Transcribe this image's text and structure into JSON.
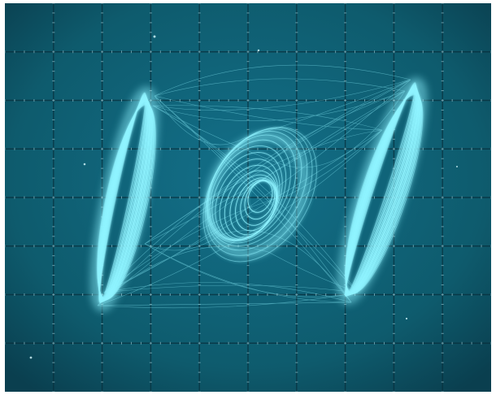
{
  "screen": {
    "colors": {
      "background": "#0e5b6d",
      "background_edge": "#0a3f4f",
      "grid": "#082f3c",
      "graticule_marks": "#b9e9f2",
      "trace": "#8ff3ff",
      "trace_glow": "#c9fbff"
    },
    "graticule": {
      "major_columns": 10,
      "major_rows": 8,
      "minor_ticks_per_division": 5
    },
    "trace": {
      "description_type": "lissajous",
      "left_loop": "left-ellipse",
      "center_loop": "center-spiral",
      "right_loop": "right-ellipse"
    }
  }
}
